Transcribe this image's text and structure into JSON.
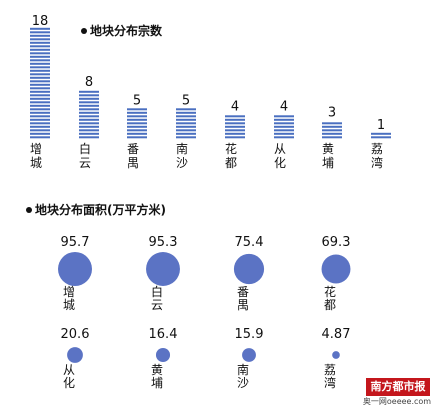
{
  "chart_data": [
    {
      "type": "bar",
      "title": "地块分布宗数",
      "categories": [
        "增城",
        "白云",
        "番禺",
        "南沙",
        "花都",
        "从化",
        "黄埔",
        "荔湾"
      ],
      "values": [
        18,
        8,
        5,
        5,
        4,
        4,
        3,
        1
      ],
      "value_labels": [
        "18",
        "8",
        "5",
        "5",
        "4",
        "4",
        "3",
        "1"
      ],
      "ylim": [
        0,
        18
      ],
      "grid": false,
      "bar_style": "horizontal-striped",
      "color": "#4a6fc0"
    },
    {
      "type": "scatter",
      "subtype": "bubble",
      "title": "地块分布面积(万平方米)",
      "categories": [
        "增城",
        "白云",
        "番禺",
        "花都",
        "从化",
        "黄埔",
        "南沙",
        "荔湾"
      ],
      "values": [
        95.7,
        95.3,
        75.4,
        69.3,
        20.6,
        16.4,
        15.9,
        4.87
      ],
      "value_labels": [
        "95.7",
        "95.3",
        "75.4",
        "69.3",
        "20.6",
        "16.4",
        "15.9",
        "4.87"
      ],
      "grid": false,
      "color": "#5b73c4"
    }
  ],
  "watermark": {
    "logo_text": "南方都市报",
    "sub_text": "奥一网oeeee.com"
  }
}
